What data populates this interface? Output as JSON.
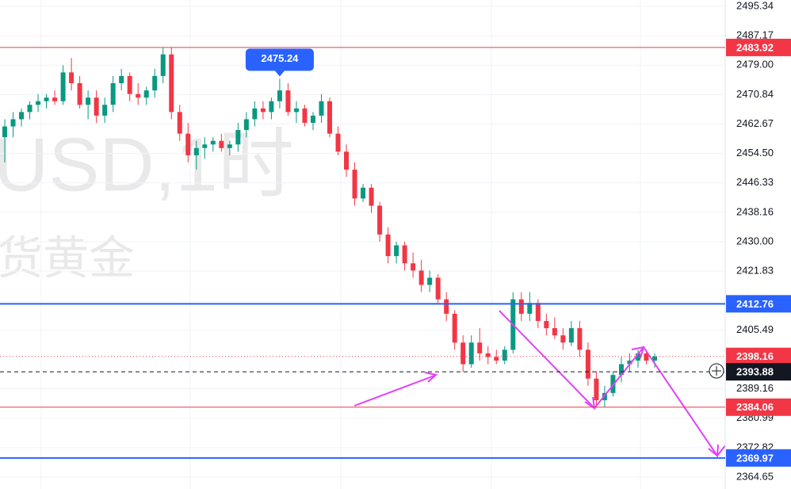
{
  "chart_data": {
    "type": "candlestick",
    "watermark": [
      "USD,1时",
      "货黄金"
    ],
    "up_color": "#089981",
    "down_color": "#f23645",
    "ylim": [
      2361.35,
      2497.1
    ],
    "yticks": [
      2495.34,
      2487.17,
      {
        "value": 2479.0,
        "label": "2479.00"
      },
      2470.84,
      2462.67,
      {
        "value": 2454.5,
        "label": "2454.50"
      },
      2446.33,
      2438.16,
      {
        "value": 2430.0,
        "label": "2430.00"
      },
      2421.83,
      2405.49,
      2389.16,
      2380.99,
      2372.82,
      2364.65
    ],
    "grid": true,
    "high_marker": 2475.24,
    "levels": [
      {
        "value": 2483.92,
        "color": "#f23645",
        "style": "solid"
      },
      {
        "value": 2412.76,
        "color": "#2962ff",
        "style": "solid"
      },
      {
        "value": 2398.16,
        "color": "#f23645",
        "style": "dotted"
      },
      {
        "value": 2393.88,
        "color": "#131722",
        "style": "dashed"
      },
      {
        "value": 2384.06,
        "color": "#f23645",
        "style": "solid"
      },
      {
        "value": 2369.97,
        "color": "#2962ff",
        "style": "solid"
      }
    ],
    "candles": [
      [
        2459,
        2464,
        2452,
        2462
      ],
      [
        2462,
        2466,
        2459,
        2464
      ],
      [
        2464,
        2467,
        2462,
        2466
      ],
      [
        2466,
        2469,
        2464,
        2468
      ],
      [
        2468,
        2471,
        2466,
        2469
      ],
      [
        2469,
        2471,
        2467,
        2470
      ],
      [
        2470,
        2472,
        2468,
        2469
      ],
      [
        2469,
        2479,
        2468,
        2477
      ],
      [
        2477,
        2481,
        2472,
        2474
      ],
      [
        2474,
        2476,
        2467,
        2468
      ],
      [
        2468,
        2472,
        2464,
        2470
      ],
      [
        2470,
        2472,
        2463,
        2465
      ],
      [
        2465,
        2470,
        2463,
        2468
      ],
      [
        2468,
        2476,
        2466,
        2474
      ],
      [
        2474,
        2478,
        2472,
        2476
      ],
      [
        2476,
        2477,
        2469,
        2471
      ],
      [
        2471,
        2474,
        2468,
        2470
      ],
      [
        2470,
        2473,
        2468,
        2472
      ],
      [
        2472,
        2478,
        2470,
        2476
      ],
      [
        2476,
        2484,
        2474,
        2482
      ],
      [
        2482,
        2484,
        2464,
        2466
      ],
      [
        2466,
        2468,
        2458,
        2460
      ],
      [
        2460,
        2463,
        2452,
        2454
      ],
      [
        2454,
        2458,
        2450,
        2456
      ],
      [
        2456,
        2459,
        2453,
        2457
      ],
      [
        2457,
        2459,
        2455,
        2458
      ],
      [
        2458,
        2460,
        2455,
        2456
      ],
      [
        2456,
        2458,
        2454,
        2457
      ],
      [
        2457,
        2463,
        2455,
        2461
      ],
      [
        2461,
        2466,
        2459,
        2464
      ],
      [
        2464,
        2469,
        2462,
        2467
      ],
      [
        2467,
        2469,
        2464,
        2466
      ],
      [
        2466,
        2470,
        2464,
        2469
      ],
      [
        2469,
        2475.24,
        2467,
        2472
      ],
      [
        2472,
        2474,
        2465,
        2466
      ],
      [
        2466,
        2469,
        2463,
        2467
      ],
      [
        2467,
        2468,
        2462,
        2463
      ],
      [
        2463,
        2466,
        2461,
        2465
      ],
      [
        2465,
        2471,
        2463,
        2469
      ],
      [
        2469,
        2470,
        2459,
        2460
      ],
      [
        2460,
        2462,
        2454,
        2455
      ],
      [
        2455,
        2457,
        2448,
        2450
      ],
      [
        2450,
        2452,
        2440,
        2442
      ],
      [
        2442,
        2446,
        2441,
        2445
      ],
      [
        2445,
        2446,
        2438,
        2440
      ],
      [
        2440,
        2441,
        2430,
        2432
      ],
      [
        2432,
        2434,
        2424,
        2426
      ],
      [
        2426,
        2430,
        2424,
        2429
      ],
      [
        2429,
        2430,
        2422,
        2424
      ],
      [
        2424,
        2427,
        2420,
        2422
      ],
      [
        2422,
        2425,
        2416,
        2418
      ],
      [
        2418,
        2422,
        2416,
        2420
      ],
      [
        2420,
        2421,
        2413,
        2414
      ],
      [
        2414,
        2416,
        2408,
        2410
      ],
      [
        2410,
        2411,
        2400,
        2402
      ],
      [
        2402,
        2404,
        2393.88,
        2396
      ],
      [
        2396,
        2404,
        2395,
        2402
      ],
      [
        2402,
        2406,
        2397,
        2399
      ],
      [
        2399,
        2401,
        2396,
        2398
      ],
      [
        2398,
        2400,
        2396,
        2397
      ],
      [
        2397,
        2401,
        2396,
        2400
      ],
      [
        2400,
        2416,
        2399,
        2414
      ],
      [
        2414,
        2416,
        2408,
        2410
      ],
      [
        2410,
        2416,
        2408,
        2413
      ],
      [
        2413,
        2414,
        2406,
        2408
      ],
      [
        2408,
        2410,
        2404,
        2406
      ],
      [
        2406,
        2409,
        2403,
        2404
      ],
      [
        2404,
        2406,
        2400,
        2402
      ],
      [
        2402,
        2408,
        2401,
        2406
      ],
      [
        2406,
        2408,
        2398,
        2400
      ],
      [
        2400,
        2402,
        2390,
        2392
      ],
      [
        2392,
        2394,
        2384,
        2386
      ],
      [
        2386,
        2390,
        2384.06,
        2388
      ],
      [
        2388,
        2394,
        2387,
        2393
      ],
      [
        2393,
        2398,
        2391,
        2396
      ],
      [
        2396,
        2399,
        2394,
        2397
      ],
      [
        2397,
        2400,
        2395,
        2399
      ],
      [
        2399,
        2400,
        2396,
        2397
      ],
      [
        2397,
        2399,
        2395,
        2398.16
      ]
    ]
  }
}
